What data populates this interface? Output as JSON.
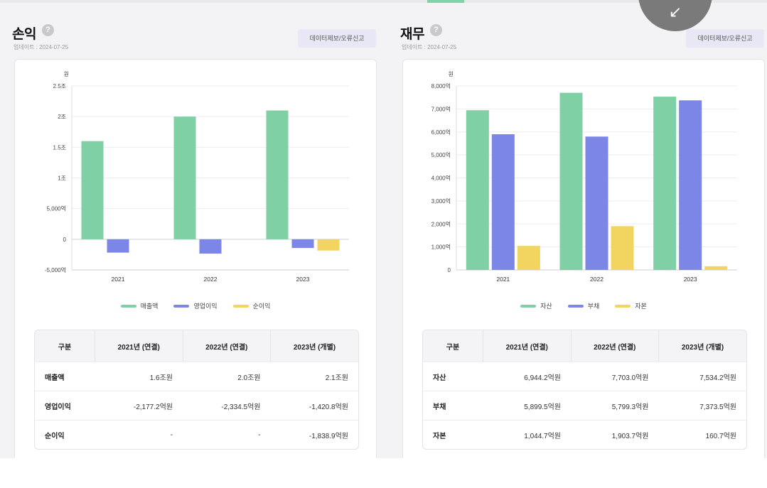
{
  "colors": {
    "green": "#7fd0a4",
    "blue": "#7c86e6",
    "yellow": "#f2d460"
  },
  "float_icon": "arrow-down-left-icon",
  "panels": [
    {
      "title": "손익",
      "updated": "업데이트 : 2024-07-25",
      "report_label": "데이터제보/오류신고",
      "unit": "원",
      "table": {
        "headers": [
          "구분",
          "2021년 (연결)",
          "2022년 (연결)",
          "2023년 (개별)"
        ],
        "rows": [
          [
            "매출액",
            "1.6조원",
            "2.0조원",
            "2.1조원"
          ],
          [
            "영업이익",
            "-2,177.2억원",
            "-2,334.5억원",
            "-1,420.8억원"
          ],
          [
            "순이익",
            "-",
            "-",
            "-1,838.9억원"
          ]
        ]
      }
    },
    {
      "title": "재무",
      "updated": "업데이트 : 2024-07-25",
      "report_label": "데이터제보/오류신고",
      "unit": "원",
      "table": {
        "headers": [
          "구분",
          "2021년 (연결)",
          "2022년 (연결)",
          "2023년 (개별)"
        ],
        "rows": [
          [
            "자산",
            "6,944.2억원",
            "7,703.0억원",
            "7,534.2억원"
          ],
          [
            "부채",
            "5,899.5억원",
            "5,799.3억원",
            "7,373.5억원"
          ],
          [
            "자본",
            "1,044.7억원",
            "1,903.7억원",
            "160.7억원"
          ]
        ]
      }
    }
  ],
  "chart_data": [
    {
      "type": "bar",
      "categories": [
        "2021",
        "2022",
        "2023"
      ],
      "ylim": [
        -5000,
        25000
      ],
      "y_ticks": [
        -5000,
        0,
        5000,
        10000,
        15000,
        20000,
        25000
      ],
      "y_tick_labels": [
        "-5,000억",
        "0",
        "5,000억",
        "1조",
        "1.5조",
        "2조",
        "2.5조"
      ],
      "grid": true,
      "legend_position": "bottom",
      "series": [
        {
          "name": "매출액",
          "color": "#7fd0a4",
          "values": [
            16000,
            20000,
            21000
          ]
        },
        {
          "name": "영업이익",
          "color": "#7c86e6",
          "values": [
            -2177.2,
            -2334.5,
            -1420.8
          ]
        },
        {
          "name": "순이익",
          "color": "#f2d460",
          "values": [
            null,
            null,
            -1838.9
          ]
        }
      ]
    },
    {
      "type": "bar",
      "categories": [
        "2021",
        "2022",
        "2023"
      ],
      "ylim": [
        0,
        8000
      ],
      "y_ticks": [
        0,
        1000,
        2000,
        3000,
        4000,
        5000,
        6000,
        7000,
        8000
      ],
      "y_tick_labels": [
        "0",
        "1,000억",
        "2,000억",
        "3,000억",
        "4,000억",
        "5,000억",
        "6,000억",
        "7,000억",
        "8,000억"
      ],
      "grid": true,
      "legend_position": "bottom",
      "series": [
        {
          "name": "자산",
          "color": "#7fd0a4",
          "values": [
            6944.2,
            7703.0,
            7534.2
          ]
        },
        {
          "name": "부채",
          "color": "#7c86e6",
          "values": [
            5899.5,
            5799.3,
            7373.5
          ]
        },
        {
          "name": "자본",
          "color": "#f2d460",
          "values": [
            1044.7,
            1903.7,
            160.7
          ]
        }
      ]
    }
  ]
}
